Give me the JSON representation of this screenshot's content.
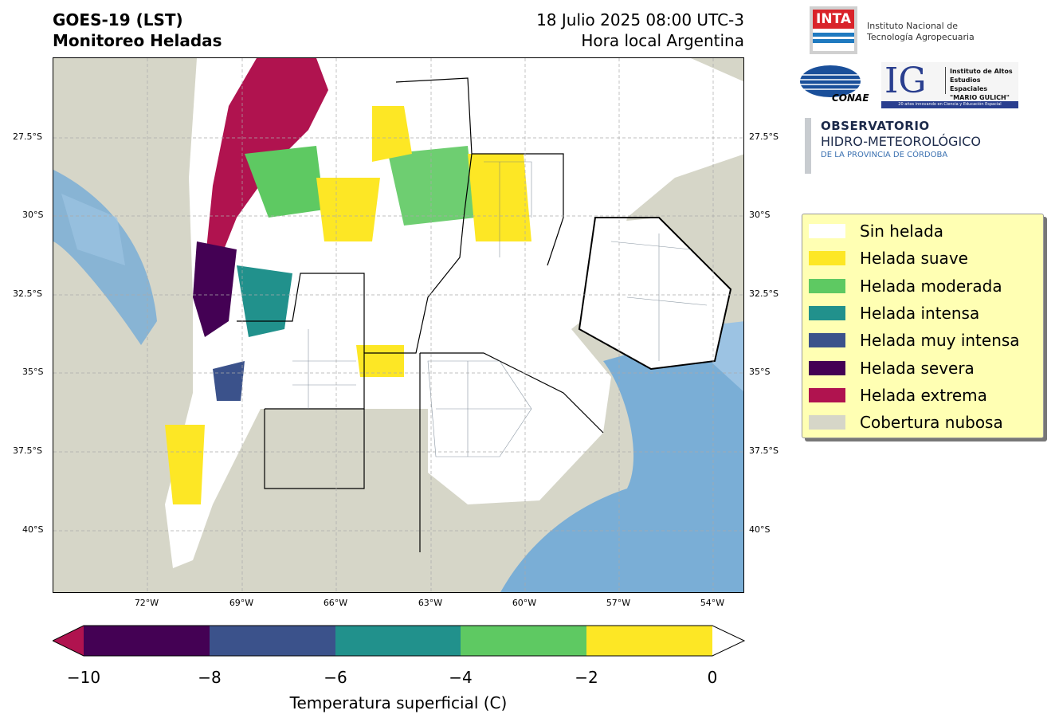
{
  "header": {
    "title_line1": "GOES-19 (LST)",
    "title_line2": "Monitoreo Heladas",
    "date_line": "18 Julio 2025 08:00 UTC-3",
    "tz_line": "Hora local Argentina"
  },
  "map": {
    "lat_labels": [
      "27.5°S",
      "30°S",
      "32.5°S",
      "35°S",
      "37.5°S",
      "40°S"
    ],
    "lon_labels": [
      "72°W",
      "69°W",
      "66°W",
      "63°W",
      "60°W",
      "57°W",
      "54°W"
    ]
  },
  "logos": {
    "inta": "INTA",
    "inta_name_1": "Instituto Nacional de",
    "inta_name_2": "Tecnología Agropecuaria",
    "conae": "CONAE",
    "ig": "IG",
    "ig_name_1": "Instituto de Altos",
    "ig_name_2": "Estudios Espaciales",
    "ig_name_3": "\"MARIO GULICH\"",
    "ig_tagline": "20 años innovando en Ciencia y Educación Espacial",
    "obs_1": "OBSERVATORIO",
    "obs_2": "HIDRO-METEOROLÓGICO",
    "obs_3": "DE LA PROVINCIA DE CÓRDOBA"
  },
  "legend": {
    "items": [
      {
        "label": "Sin helada",
        "color": "#ffffff"
      },
      {
        "label": "Helada suave",
        "color": "#fde725"
      },
      {
        "label": "Helada moderada",
        "color": "#5ec962"
      },
      {
        "label": "Helada intensa",
        "color": "#21918c"
      },
      {
        "label": "Helada muy intensa",
        "color": "#3b528b"
      },
      {
        "label": "Helada severa",
        "color": "#440154"
      },
      {
        "label": "Helada extrema",
        "color": "#b0134f"
      },
      {
        "label": "Cobertura nubosa",
        "color": "#d6d6c8"
      }
    ]
  },
  "colorbar": {
    "ticks": [
      "−10",
      "−8",
      "−6",
      "−4",
      "−2",
      "0"
    ],
    "label": "Temperatura superficial (C)",
    "colors": [
      "#440154",
      "#3b528b",
      "#21918c",
      "#5ec962",
      "#fde725"
    ],
    "under_color": "#b0134f",
    "over_color": "#ffffff"
  }
}
